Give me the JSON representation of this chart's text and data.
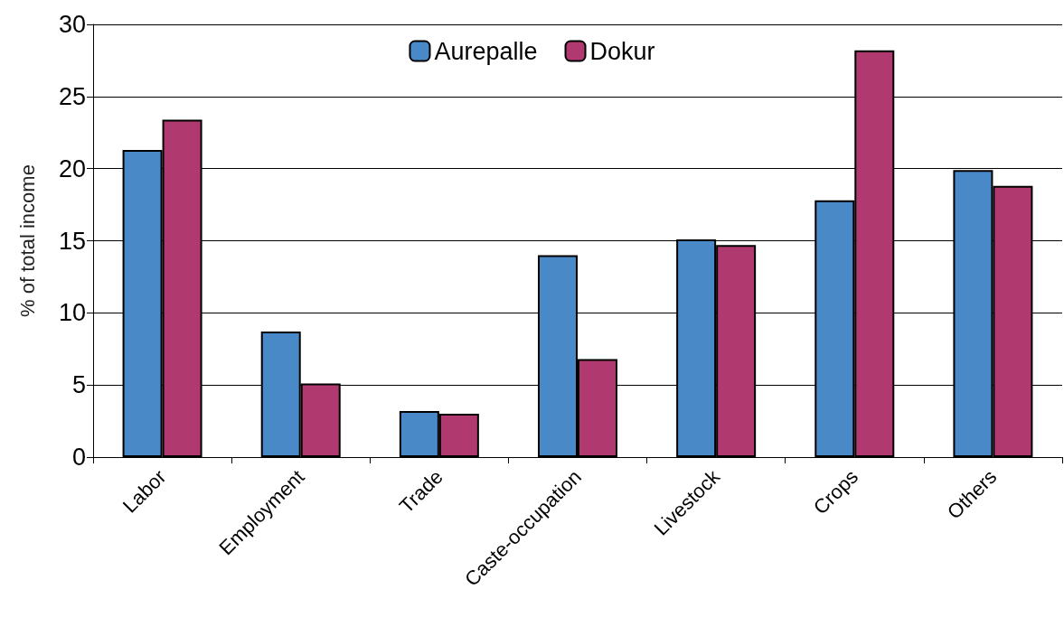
{
  "chart_data": {
    "type": "bar",
    "ylabel": "% of total income",
    "categories": [
      "Labor",
      "Employment",
      "Trade",
      "Caste-occupation",
      "Livestock",
      "Crops",
      "Others"
    ],
    "series": [
      {
        "name": "Aurepalle",
        "color": "#4a89c8",
        "values": [
          21.3,
          8.7,
          3.2,
          14.0,
          15.1,
          17.8,
          19.9
        ]
      },
      {
        "name": "Dokur",
        "color": "#b03a6f",
        "values": [
          23.4,
          5.1,
          3.0,
          6.8,
          14.7,
          28.2,
          18.8
        ]
      }
    ],
    "ylim": [
      0,
      30
    ],
    "yticks": [
      0,
      5,
      10,
      15,
      20,
      25,
      30
    ],
    "grid": "y",
    "legend": "top"
  }
}
